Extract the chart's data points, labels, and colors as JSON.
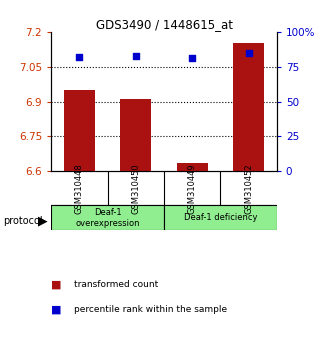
{
  "title": "GDS3490 / 1448615_at",
  "samples": [
    "GSM310448",
    "GSM310450",
    "GSM310449",
    "GSM310452"
  ],
  "red_values": [
    6.952,
    6.912,
    6.635,
    7.15
  ],
  "blue_values": [
    82.0,
    83.0,
    81.0,
    85.0
  ],
  "ylim_left": [
    6.6,
    7.2
  ],
  "yticks_left": [
    6.6,
    6.75,
    6.9,
    7.05,
    7.2
  ],
  "ylim_right": [
    0,
    100
  ],
  "yticks_right": [
    0,
    25,
    50,
    75,
    100
  ],
  "ytick_labels_right": [
    "0",
    "25",
    "50",
    "75",
    "100%"
  ],
  "hlines": [
    6.75,
    6.9,
    7.05
  ],
  "bar_color": "#aa1111",
  "marker_color": "#0000cc",
  "bar_width": 0.55,
  "background_color": "#ffffff",
  "plot_bg": "#ffffff",
  "tick_label_color_left": "#cc3300",
  "tick_label_color_right": "#0000cc",
  "legend_red_label": "transformed count",
  "legend_blue_label": "percentile rank within the sample",
  "protocol_label": "protocol",
  "group1_label": "Deaf-1\noverexpression",
  "group2_label": "Deaf-1 deficiency",
  "sample_label_bg": "#c8c8c8",
  "group_label_bg": "#90ee90"
}
